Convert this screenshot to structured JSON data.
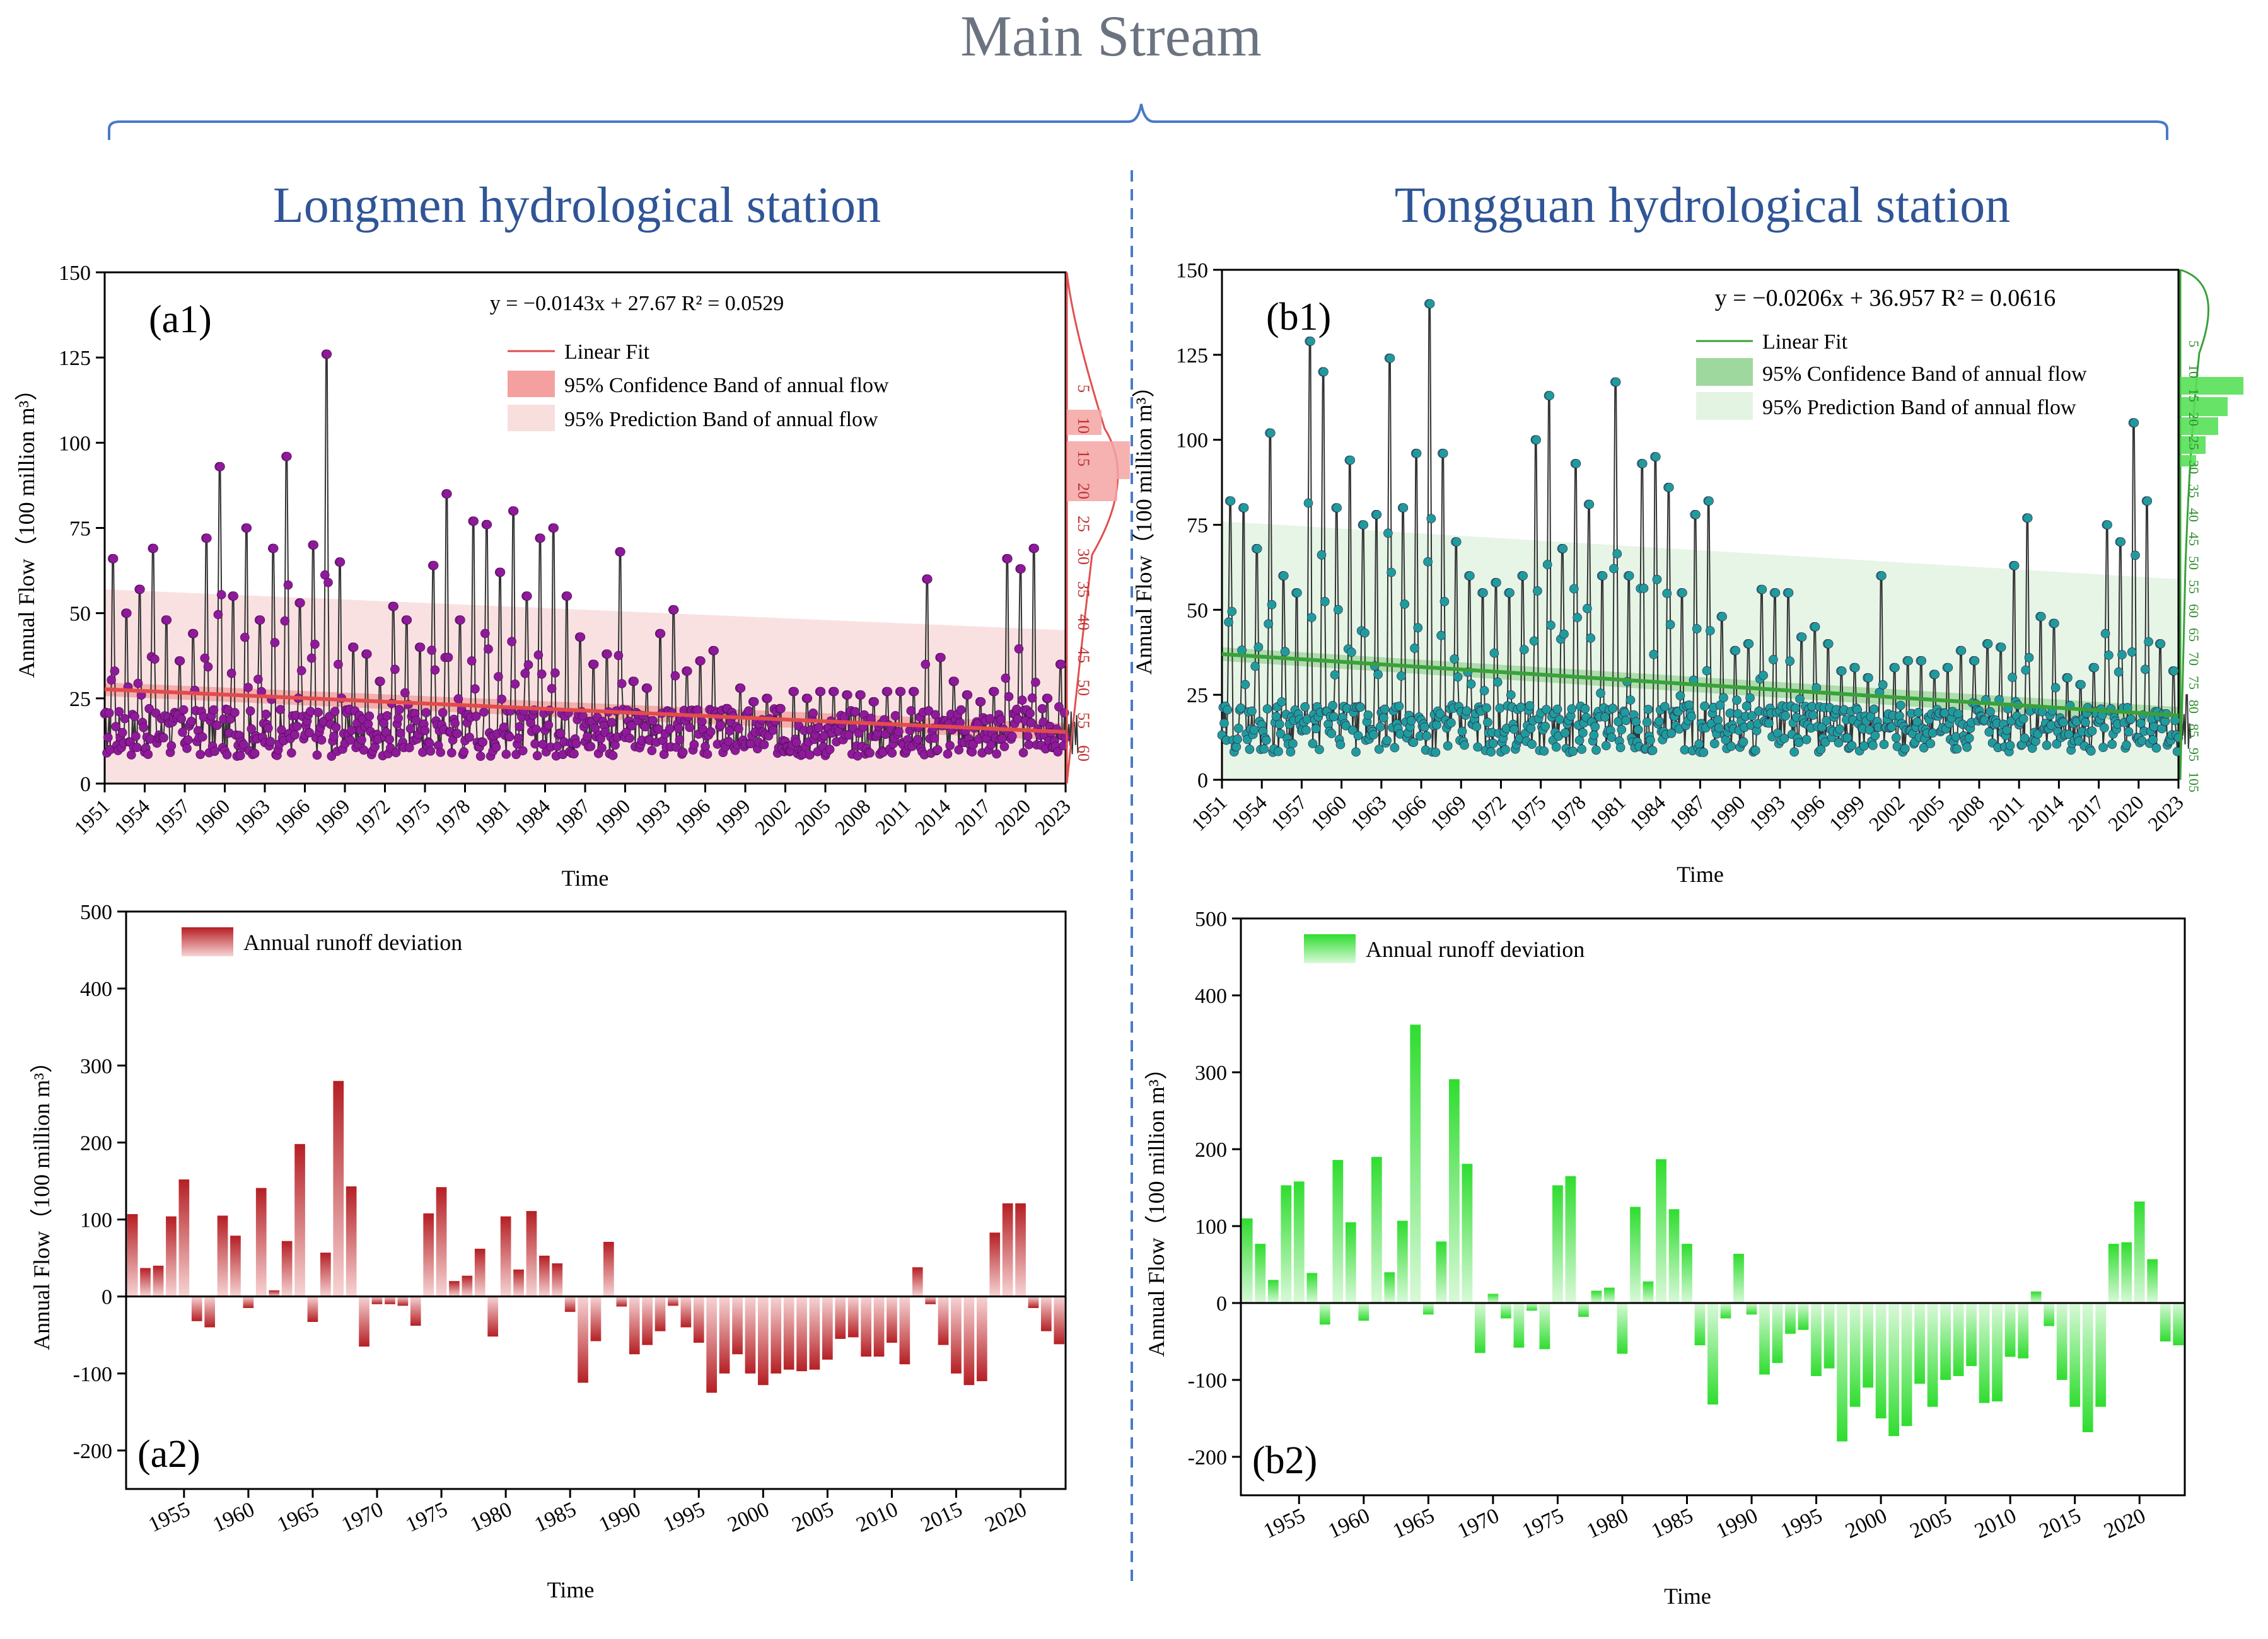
{
  "figure": {
    "title": "Main Stream",
    "left_station": "Longmen hydrological station",
    "right_station": "Tongguan hydrological station"
  },
  "chart_data": [
    {
      "id": "a1",
      "type": "line",
      "panel_label": "(a1)",
      "equation": "y =  −0.0143x + 27.67  R² = 0.0529",
      "legend": [
        "Linear Fit",
        "95% Confidence Band of annual flow",
        "95% Prediction Band of annual flow"
      ],
      "xlabel": "Time",
      "ylabel": "Annual Flow（100 million m³）",
      "x_ticks": [
        "1951",
        "1954",
        "1957",
        "1960",
        "1963",
        "1966",
        "1969",
        "1972",
        "1975",
        "1978",
        "1981",
        "1984",
        "1987",
        "1990",
        "1993",
        "1996",
        "1999",
        "2002",
        "2005",
        "2008",
        "2011",
        "2014",
        "2017",
        "2020",
        "2023"
      ],
      "y_ticks": [
        "0",
        "25",
        "50",
        "75",
        "100",
        "125",
        "150"
      ],
      "xlim": [
        1951,
        2023
      ],
      "ylim": [
        0,
        150
      ],
      "fit": {
        "slope_per_month": -0.0143,
        "intercept": 27.67
      },
      "prediction_band_upper": [
        57,
        45
      ],
      "series_note": "monthly flow series 1951-2023, peaks listed as [year, value]",
      "peaks": [
        [
          1951.7,
          66
        ],
        [
          1952.7,
          50
        ],
        [
          1953.7,
          57
        ],
        [
          1954.7,
          69
        ],
        [
          1955.7,
          48
        ],
        [
          1956.7,
          36
        ],
        [
          1957.7,
          44
        ],
        [
          1958.7,
          72
        ],
        [
          1959.7,
          93
        ],
        [
          1960.7,
          55
        ],
        [
          1961.7,
          75
        ],
        [
          1962.7,
          48
        ],
        [
          1963.7,
          69
        ],
        [
          1964.7,
          96
        ],
        [
          1965.7,
          53
        ],
        [
          1966.7,
          70
        ],
        [
          1967.7,
          126
        ],
        [
          1968.7,
          65
        ],
        [
          1969.7,
          40
        ],
        [
          1970.7,
          38
        ],
        [
          1971.7,
          30
        ],
        [
          1972.7,
          52
        ],
        [
          1973.7,
          48
        ],
        [
          1974.7,
          40
        ],
        [
          1975.7,
          64
        ],
        [
          1976.7,
          85
        ],
        [
          1977.7,
          48
        ],
        [
          1978.7,
          77
        ],
        [
          1979.7,
          76
        ],
        [
          1980.7,
          62
        ],
        [
          1981.7,
          80
        ],
        [
          1982.7,
          55
        ],
        [
          1983.7,
          72
        ],
        [
          1984.7,
          75
        ],
        [
          1985.7,
          55
        ],
        [
          1986.7,
          43
        ],
        [
          1987.7,
          35
        ],
        [
          1988.7,
          38
        ],
        [
          1989.7,
          68
        ],
        [
          1990.7,
          30
        ],
        [
          1991.7,
          28
        ],
        [
          1992.7,
          44
        ],
        [
          1993.7,
          51
        ],
        [
          1994.7,
          33
        ],
        [
          1995.7,
          36
        ],
        [
          1996.7,
          39
        ],
        [
          1997.7,
          22
        ],
        [
          1998.7,
          28
        ],
        [
          1999.7,
          24
        ],
        [
          2000.7,
          25
        ],
        [
          2001.7,
          22
        ],
        [
          2002.7,
          27
        ],
        [
          2003.7,
          25
        ],
        [
          2004.7,
          27
        ],
        [
          2005.7,
          27
        ],
        [
          2006.7,
          26
        ],
        [
          2007.7,
          26
        ],
        [
          2008.7,
          24
        ],
        [
          2009.7,
          27
        ],
        [
          2010.7,
          27
        ],
        [
          2011.7,
          27
        ],
        [
          2012.7,
          60
        ],
        [
          2013.7,
          37
        ],
        [
          2014.7,
          30
        ],
        [
          2015.7,
          26
        ],
        [
          2016.7,
          24
        ],
        [
          2017.7,
          27
        ],
        [
          2018.7,
          66
        ],
        [
          2019.7,
          63
        ],
        [
          2020.7,
          69
        ],
        [
          2021.7,
          25
        ],
        [
          2022.7,
          35
        ],
        [
          2023.7,
          18
        ]
      ],
      "dist_labels": [
        "5",
        "10",
        "15",
        "20",
        "25",
        "30",
        "35",
        "40",
        "45",
        "50",
        "55",
        "60"
      ],
      "colors": {
        "points": "#8e1a9a",
        "fit": "#e24b4b",
        "confidence": "#f4a0a0",
        "prediction": "#f9dede"
      }
    },
    {
      "id": "b1",
      "type": "line",
      "panel_label": "(b1)",
      "equation": "y = −0.0206x + 36.957     R² = 0.0616",
      "legend": [
        "Linear Fit",
        "95% Confidence Band of annual flow",
        "95% Prediction Band of annual flow"
      ],
      "xlabel": "Time",
      "ylabel": "Annual Flow（100 million m³）",
      "x_ticks": [
        "1951",
        "1954",
        "1957",
        "1960",
        "1963",
        "1966",
        "1969",
        "1972",
        "1975",
        "1978",
        "1981",
        "1984",
        "1987",
        "1990",
        "1993",
        "1996",
        "1999",
        "2002",
        "2005",
        "2008",
        "2011",
        "2014",
        "2017",
        "2020",
        "2023"
      ],
      "y_ticks": [
        "0",
        "25",
        "50",
        "75",
        "100",
        "125",
        "150"
      ],
      "xlim": [
        1951,
        2023
      ],
      "ylim": [
        0,
        150
      ],
      "fit": {
        "slope_per_month": -0.0206,
        "intercept": 36.957
      },
      "prediction_band_upper": [
        76,
        59
      ],
      "series_note": "monthly flow series 1951-2023, peaks listed as [year, value]",
      "peaks": [
        [
          1951.7,
          82
        ],
        [
          1952.7,
          80
        ],
        [
          1953.7,
          68
        ],
        [
          1954.7,
          102
        ],
        [
          1955.7,
          60
        ],
        [
          1956.7,
          55
        ],
        [
          1957.7,
          129
        ],
        [
          1958.7,
          120
        ],
        [
          1959.7,
          80
        ],
        [
          1960.7,
          94
        ],
        [
          1961.7,
          75
        ],
        [
          1962.7,
          78
        ],
        [
          1963.7,
          124
        ],
        [
          1964.7,
          80
        ],
        [
          1965.7,
          96
        ],
        [
          1966.7,
          140
        ],
        [
          1967.7,
          96
        ],
        [
          1968.7,
          70
        ],
        [
          1969.7,
          60
        ],
        [
          1970.7,
          55
        ],
        [
          1971.7,
          58
        ],
        [
          1972.7,
          55
        ],
        [
          1973.7,
          60
        ],
        [
          1974.7,
          100
        ],
        [
          1975.7,
          113
        ],
        [
          1976.7,
          68
        ],
        [
          1977.7,
          93
        ],
        [
          1978.7,
          81
        ],
        [
          1979.7,
          60
        ],
        [
          1980.7,
          117
        ],
        [
          1981.7,
          60
        ],
        [
          1982.7,
          93
        ],
        [
          1983.7,
          95
        ],
        [
          1984.7,
          86
        ],
        [
          1985.7,
          55
        ],
        [
          1986.7,
          78
        ],
        [
          1987.7,
          82
        ],
        [
          1988.7,
          48
        ],
        [
          1989.7,
          38
        ],
        [
          1990.7,
          40
        ],
        [
          1991.7,
          56
        ],
        [
          1992.7,
          55
        ],
        [
          1993.7,
          55
        ],
        [
          1994.7,
          42
        ],
        [
          1995.7,
          45
        ],
        [
          1996.7,
          40
        ],
        [
          1997.7,
          32
        ],
        [
          1998.7,
          33
        ],
        [
          1999.7,
          30
        ],
        [
          2000.7,
          60
        ],
        [
          2001.7,
          33
        ],
        [
          2002.7,
          35
        ],
        [
          2003.7,
          35
        ],
        [
          2004.7,
          31
        ],
        [
          2005.7,
          33
        ],
        [
          2006.7,
          38
        ],
        [
          2007.7,
          35
        ],
        [
          2008.7,
          40
        ],
        [
          2009.7,
          39
        ],
        [
          2010.7,
          63
        ],
        [
          2011.7,
          77
        ],
        [
          2012.7,
          48
        ],
        [
          2013.7,
          46
        ],
        [
          2014.7,
          30
        ],
        [
          2015.7,
          28
        ],
        [
          2016.7,
          33
        ],
        [
          2017.7,
          75
        ],
        [
          2018.7,
          70
        ],
        [
          2019.7,
          105
        ],
        [
          2020.7,
          82
        ],
        [
          2021.7,
          40
        ],
        [
          2022.7,
          32
        ],
        [
          2023.7,
          25
        ]
      ],
      "dist_labels": [
        "5",
        "10",
        "15",
        "20",
        "25",
        "30",
        "35",
        "40",
        "45",
        "50",
        "55",
        "60",
        "65",
        "70",
        "75",
        "80",
        "85",
        "95",
        "105"
      ],
      "colors": {
        "points": "#1e9c9c",
        "fit": "#3aa13a",
        "confidence": "#9fd89f",
        "prediction": "#e3f4e3"
      }
    },
    {
      "id": "a2",
      "type": "bar",
      "panel_label": "(a2)",
      "legend": [
        "Annual runoff deviation"
      ],
      "xlabel": "Time",
      "ylabel": "Annual Flow（100 million m³）",
      "x_ticks": [
        "1955",
        "1960",
        "1965",
        "1970",
        "1975",
        "1980",
        "1985",
        "1990",
        "1995",
        "2000",
        "2005",
        "2010",
        "2015",
        "2020"
      ],
      "y_ticks": [
        "-200",
        "-100",
        "0",
        "100",
        "200",
        "300",
        "400",
        "500"
      ],
      "ylim": [
        -250,
        500
      ],
      "years": [
        1951,
        1952,
        1953,
        1954,
        1955,
        1956,
        1957,
        1958,
        1959,
        1960,
        1961,
        1962,
        1963,
        1964,
        1965,
        1966,
        1967,
        1968,
        1969,
        1970,
        1971,
        1972,
        1973,
        1974,
        1975,
        1976,
        1977,
        1978,
        1979,
        1980,
        1981,
        1982,
        1983,
        1984,
        1985,
        1986,
        1987,
        1988,
        1989,
        1990,
        1991,
        1992,
        1993,
        1994,
        1995,
        1996,
        1997,
        1998,
        1999,
        2000,
        2001,
        2002,
        2003,
        2004,
        2005,
        2006,
        2007,
        2008,
        2009,
        2010,
        2011,
        2012,
        2013,
        2014,
        2015,
        2016,
        2017,
        2018,
        2019,
        2020,
        2021,
        2022,
        2023
      ],
      "values": [
        107,
        37,
        40,
        104,
        152,
        -32,
        -40,
        105,
        79,
        -15,
        141,
        8,
        72,
        198,
        -33,
        57,
        280,
        143,
        -65,
        -10,
        -10,
        -12,
        -38,
        108,
        142,
        20,
        27,
        62,
        -52,
        104,
        35,
        111,
        53,
        43,
        -20,
        -112,
        -58,
        71,
        -13,
        -75,
        -63,
        -45,
        -12,
        -40,
        -60,
        -125,
        -100,
        -75,
        -100,
        -115,
        -100,
        -95,
        -97,
        -95,
        -82,
        -55,
        -53,
        -78,
        -78,
        -60,
        -88,
        38,
        -10,
        -63,
        -100,
        -115,
        -110,
        83,
        121,
        121,
        -15,
        -45,
        -62
      ],
      "colors": {
        "bar": "#c0282b"
      }
    },
    {
      "id": "b2",
      "type": "bar",
      "panel_label": "(b2)",
      "legend": [
        "Annual runoff deviation"
      ],
      "xlabel": "Time",
      "ylabel": "Annual Flow（100 million m³）",
      "x_ticks": [
        "1955",
        "1960",
        "1965",
        "1970",
        "1975",
        "1980",
        "1985",
        "1990",
        "1995",
        "2000",
        "2005",
        "2010",
        "2015",
        "2020"
      ],
      "y_ticks": [
        "-200",
        "-100",
        "0",
        "100",
        "200",
        "300",
        "400",
        "500"
      ],
      "ylim": [
        -250,
        500
      ],
      "years": [
        1951,
        1952,
        1953,
        1954,
        1955,
        1956,
        1957,
        1958,
        1959,
        1960,
        1961,
        1962,
        1963,
        1964,
        1965,
        1966,
        1967,
        1968,
        1969,
        1970,
        1971,
        1972,
        1973,
        1974,
        1975,
        1976,
        1977,
        1978,
        1979,
        1980,
        1981,
        1982,
        1983,
        1984,
        1985,
        1986,
        1987,
        1988,
        1989,
        1990,
        1991,
        1992,
        1993,
        1994,
        1995,
        1996,
        1997,
        1998,
        1999,
        2000,
        2001,
        2002,
        2003,
        2004,
        2005,
        2006,
        2007,
        2008,
        2009,
        2010,
        2011,
        2012,
        2013,
        2014,
        2015,
        2016,
        2017,
        2018,
        2019,
        2020,
        2021,
        2022,
        2023
      ],
      "values": [
        110,
        77,
        30,
        153,
        158,
        39,
        -28,
        186,
        105,
        -23,
        190,
        40,
        107,
        362,
        -15,
        80,
        291,
        181,
        -65,
        12,
        -20,
        -58,
        -10,
        -60,
        153,
        165,
        -18,
        16,
        20,
        -66,
        125,
        28,
        187,
        122,
        77,
        -55,
        -132,
        -20,
        64,
        -15,
        -93,
        -78,
        -40,
        -35,
        -95,
        -85,
        -180,
        -135,
        -110,
        -150,
        -173,
        -160,
        -105,
        -135,
        -100,
        -95,
        -82,
        -130,
        -128,
        -70,
        -72,
        15,
        -30,
        -100,
        -135,
        -168,
        -135,
        77,
        79,
        132,
        57,
        -50,
        -55
      ],
      "colors": {
        "bar": "#3ee53e"
      }
    }
  ]
}
